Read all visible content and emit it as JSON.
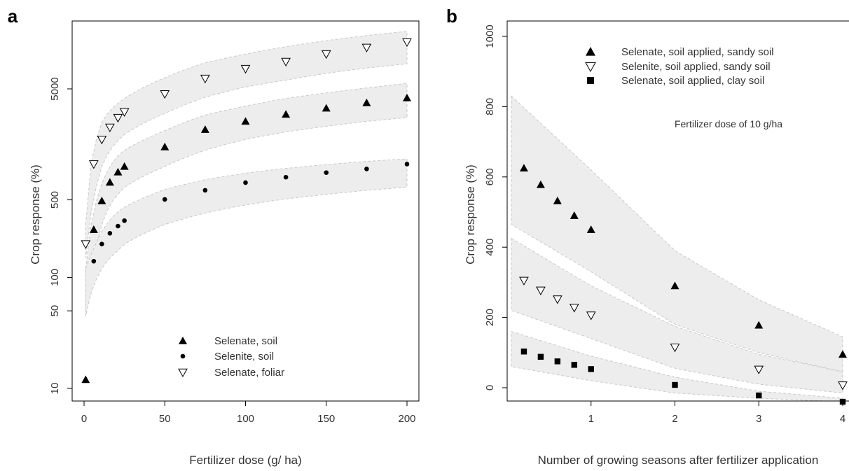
{
  "chart_data": [
    {
      "panel": "a",
      "type": "scatter",
      "xlabel": "Fertilizer dose (g/ ha)",
      "ylabel": "Crop response (%)",
      "xlim": [
        0,
        200
      ],
      "ylim": [
        10,
        15000
      ],
      "yscale": "log",
      "xticks": [
        "0",
        "50",
        "100",
        "150",
        "200"
      ],
      "yticks": [
        "10",
        "50",
        "100",
        "500",
        "5000"
      ],
      "grid": false,
      "legend_position": "bottom-center",
      "legend": [
        "Selenate, soil",
        "Selenite, soil",
        "Selenate, foliar"
      ],
      "series": [
        {
          "name": "Selenate, soil",
          "marker": "filled-triangle",
          "x": [
            1,
            6,
            11,
            16,
            21,
            25,
            50,
            75,
            100,
            125,
            150,
            175,
            200
          ],
          "y": [
            12,
            270,
            490,
            720,
            890,
            1000,
            1500,
            2150,
            2550,
            2950,
            3350,
            3750,
            4150
          ]
        },
        {
          "name": "Selenite, soil",
          "marker": "filled-circle",
          "x": [
            6,
            11,
            16,
            21,
            25,
            50,
            75,
            100,
            125,
            150,
            175,
            200
          ],
          "y": [
            140,
            200,
            250,
            290,
            325,
            505,
            610,
            715,
            800,
            880,
            950,
            1050
          ]
        },
        {
          "name": "Selenate, foliar",
          "marker": "open-triangle-down",
          "x": [
            1,
            6,
            11,
            16,
            21,
            25,
            50,
            75,
            100,
            125,
            150,
            175,
            200
          ],
          "y": [
            200,
            1050,
            1750,
            2250,
            2750,
            3100,
            4500,
            6200,
            7600,
            8800,
            10300,
            11800,
            13200
          ]
        }
      ],
      "bands": [
        {
          "series": "Selenate, foliar",
          "x": [
            1,
            6,
            11,
            16,
            21,
            25,
            50,
            75,
            100,
            125,
            150,
            175,
            200
          ],
          "lower": [
            150,
            500,
            1000,
            1400,
            1700,
            1950,
            3000,
            4200,
            5200,
            6000,
            6900,
            7700,
            8400
          ],
          "upper": [
            300,
            1400,
            2500,
            3200,
            3700,
            4100,
            6300,
            8600,
            10300,
            12000,
            13600,
            15100,
            16500
          ]
        },
        {
          "series": "Selenate, soil",
          "x": [
            1,
            6,
            11,
            16,
            21,
            25,
            50,
            75,
            100,
            125,
            150,
            175,
            200
          ],
          "lower": [
            45,
            140,
            300,
            450,
            560,
            650,
            1000,
            1400,
            1750,
            2050,
            2300,
            2550,
            2750
          ],
          "upper": [
            120,
            380,
            700,
            1000,
            1250,
            1400,
            2100,
            2900,
            3500,
            4100,
            4600,
            5100,
            5600
          ]
        },
        {
          "series": "Selenite, soil",
          "x": [
            1,
            6,
            11,
            16,
            21,
            25,
            50,
            75,
            100,
            125,
            150,
            175,
            200
          ],
          "lower": [
            45,
            85,
            120,
            150,
            175,
            200,
            300,
            380,
            450,
            510,
            560,
            610,
            650
          ],
          "upper": [
            120,
            180,
            260,
            330,
            390,
            430,
            620,
            760,
            870,
            960,
            1040,
            1110,
            1170
          ]
        }
      ]
    },
    {
      "panel": "b",
      "type": "scatter",
      "xlabel": "Number of growing seasons after fertilizer application",
      "ylabel": "Crop response (%)",
      "xlim": [
        0,
        4
      ],
      "ylim": [
        -30,
        1000
      ],
      "xticks": [
        "1",
        "2",
        "3",
        "4"
      ],
      "yticks": [
        "0",
        "200",
        "400",
        "600",
        "800",
        "1000"
      ],
      "grid": false,
      "legend_position": "top-center",
      "legend": [
        "Selenate, soil applied, sandy soil",
        "Selenite, soil applied, sandy soil",
        "Selenate, soil applied, clay soil"
      ],
      "annotation": "Fertilizer dose of 10 g/ha",
      "series": [
        {
          "name": "Selenate, soil applied, sandy soil",
          "marker": "filled-triangle",
          "x": [
            0.2,
            0.4,
            0.6,
            0.8,
            1,
            2,
            3,
            4
          ],
          "y": [
            625,
            578,
            532,
            490,
            450,
            290,
            178,
            95
          ]
        },
        {
          "name": "Selenite, soil applied, sandy soil",
          "marker": "open-triangle-down",
          "x": [
            0.2,
            0.4,
            0.6,
            0.8,
            1,
            2,
            3,
            4
          ],
          "y": [
            305,
            277,
            252,
            228,
            206,
            115,
            52,
            7
          ]
        },
        {
          "name": "Selenate, soil applied, clay soil",
          "marker": "filled-square",
          "x": [
            0.2,
            0.4,
            0.6,
            0.8,
            1,
            2,
            3,
            4
          ],
          "y": [
            103,
            88,
            75,
            65,
            53,
            8,
            -22,
            -40
          ]
        }
      ],
      "bands": [
        {
          "series": "Selenate, soil applied, sandy soil",
          "x": [
            0.05,
            1,
            2,
            3,
            4
          ],
          "lower": [
            465,
            330,
            180,
            100,
            45
          ],
          "upper": [
            830,
            620,
            390,
            250,
            145
          ]
        },
        {
          "series": "Selenite, soil applied, sandy soil",
          "x": [
            0.05,
            1,
            2,
            3,
            4
          ],
          "lower": [
            220,
            140,
            55,
            10,
            -15
          ],
          "upper": [
            425,
            290,
            175,
            95,
            45
          ]
        },
        {
          "series": "Selenate, soil applied, clay soil",
          "x": [
            0.05,
            1,
            2,
            3,
            4
          ],
          "lower": [
            60,
            20,
            -15,
            -30,
            -40
          ],
          "upper": [
            160,
            90,
            30,
            -10,
            -30
          ]
        }
      ]
    }
  ]
}
